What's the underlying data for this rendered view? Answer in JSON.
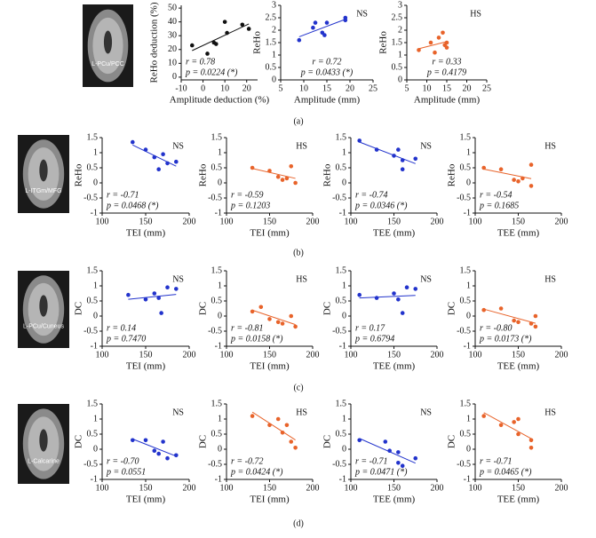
{
  "panels": [
    {
      "label": "(a)",
      "region": "L-PCu/PCC"
    },
    {
      "label": "(b)",
      "region": "L-ITGm/MFG"
    },
    {
      "label": "(c)",
      "region": "L-PCu/Cuneus"
    },
    {
      "label": "(d)",
      "region": "L-Calcarine"
    }
  ],
  "chart_data": [
    {
      "type": "scatter",
      "xlabel": "Amplitude deduction (%)",
      "ylabel": "ReHo deduction (%)",
      "xlim": [
        -10,
        25
      ],
      "xticks": [
        -10,
        0,
        10,
        20
      ],
      "ylim": [
        -2,
        52
      ],
      "yticks": [
        0,
        10,
        20,
        30,
        40,
        50
      ],
      "fit": true,
      "note_corner": "lower-left",
      "x": [
        -5,
        2,
        5,
        6,
        10,
        11,
        18,
        21
      ],
      "series": [
        {
          "color": "#111111",
          "values": [
            23,
            17,
            25,
            24,
            40,
            32,
            38,
            35
          ]
        }
      ],
      "annotations": [
        "r = 0.78",
        "p = 0.0224 (*)"
      ]
    },
    {
      "type": "scatter",
      "xlabel": "Amplitude (mm)",
      "ylabel": "ReHo",
      "xlim": [
        5,
        25
      ],
      "xticks": [
        5,
        10,
        15,
        20,
        25
      ],
      "ylim": [
        0,
        3
      ],
      "yticks": [
        0,
        0.5,
        1,
        1.5,
        2,
        2.5,
        3
      ],
      "fit": true,
      "note_corner": "lower-center",
      "x": [
        9,
        12,
        12.5,
        14,
        14.5,
        15,
        19,
        19
      ],
      "series": [
        {
          "name": "NS",
          "color": "#2233cc",
          "values": [
            1.6,
            2.1,
            2.3,
            1.9,
            1.8,
            2.3,
            2.5,
            2.4
          ]
        }
      ],
      "annotations": [
        "r = 0.72",
        "p = 0.0433 (*)"
      ]
    },
    {
      "type": "scatter",
      "xlabel": "Amplitude (mm)",
      "ylabel": "ReHo",
      "xlim": [
        5,
        25
      ],
      "xticks": [
        5,
        10,
        15,
        20,
        25
      ],
      "ylim": [
        0,
        3
      ],
      "yticks": [
        0,
        0.5,
        1,
        1.5,
        2,
        2.5,
        3
      ],
      "fit": true,
      "note_corner": "lower-center",
      "x": [
        8,
        11,
        12,
        13,
        14,
        14.5,
        15,
        15
      ],
      "series": [
        {
          "name": "HS",
          "color": "#e8632a",
          "values": [
            1.2,
            1.5,
            1.1,
            1.7,
            1.9,
            1.4,
            1.5,
            1.3
          ]
        }
      ],
      "annotations": [
        "r = 0.33",
        "p = 0.4179"
      ]
    },
    {
      "type": "scatter",
      "xlabel": "TEI (mm)",
      "ylabel": "ReHo",
      "xlim": [
        100,
        200
      ],
      "xticks": [
        100,
        150,
        200
      ],
      "ylim": [
        -1,
        1.5
      ],
      "yticks": [
        -1,
        -0.5,
        0,
        0.5,
        1,
        1.5
      ],
      "fit": true,
      "note_corner": "lower-left",
      "x": [
        135,
        150,
        160,
        165,
        170,
        175,
        185
      ],
      "series": [
        {
          "name": "NS",
          "color": "#2233cc",
          "values": [
            1.35,
            1.1,
            0.85,
            0.45,
            0.95,
            0.65,
            0.7
          ]
        }
      ],
      "annotations": [
        "r = -0.71",
        "p = 0.0468 (*)"
      ]
    },
    {
      "type": "scatter",
      "xlabel": "TEI (mm)",
      "ylabel": "ReHo",
      "xlim": [
        100,
        200
      ],
      "xticks": [
        100,
        150,
        200
      ],
      "ylim": [
        -1,
        1.5
      ],
      "yticks": [
        -1,
        -0.5,
        0,
        0.5,
        1,
        1.5
      ],
      "fit": true,
      "note_corner": "lower-left",
      "x": [
        130,
        150,
        160,
        165,
        170,
        175,
        180
      ],
      "series": [
        {
          "name": "HS",
          "color": "#e8632a",
          "values": [
            0.5,
            0.4,
            0.2,
            0.1,
            0.15,
            0.55,
            0.0
          ]
        }
      ],
      "annotations": [
        "r = -0.59",
        "p = 0.1203"
      ]
    },
    {
      "type": "scatter",
      "xlabel": "TEE (mm)",
      "ylabel": "ReHo",
      "xlim": [
        100,
        200
      ],
      "xticks": [
        100,
        150,
        200
      ],
      "ylim": [
        -1,
        1.5
      ],
      "yticks": [
        -1,
        -0.5,
        0,
        0.5,
        1,
        1.5
      ],
      "fit": true,
      "note_corner": "lower-left",
      "x": [
        110,
        130,
        150,
        155,
        160,
        160,
        175
      ],
      "series": [
        {
          "name": "NS",
          "color": "#2233cc",
          "values": [
            1.4,
            1.1,
            0.9,
            1.1,
            0.75,
            0.45,
            0.8
          ]
        }
      ],
      "annotations": [
        "r = -0.74",
        "p = 0.0346 (*)"
      ]
    },
    {
      "type": "scatter",
      "xlabel": "TEE (mm)",
      "ylabel": "ReHo",
      "xlim": [
        100,
        200
      ],
      "xticks": [
        100,
        150,
        200
      ],
      "ylim": [
        -1,
        1.5
      ],
      "yticks": [
        -1,
        -0.5,
        0,
        0.5,
        1,
        1.5
      ],
      "fit": true,
      "note_corner": "lower-left",
      "x": [
        110,
        130,
        145,
        150,
        155,
        165,
        165
      ],
      "series": [
        {
          "name": "HS",
          "color": "#e8632a",
          "values": [
            0.5,
            0.45,
            0.1,
            0.05,
            0.15,
            0.6,
            -0.1
          ]
        }
      ],
      "annotations": [
        "r = -0.54",
        "p = 0.1685"
      ]
    },
    {
      "type": "scatter",
      "xlabel": "TEI (mm)",
      "ylabel": "DC",
      "xlim": [
        100,
        200
      ],
      "xticks": [
        100,
        150,
        200
      ],
      "ylim": [
        -1,
        1.5
      ],
      "yticks": [
        -1,
        -0.5,
        0,
        0.5,
        1,
        1.5
      ],
      "fit": true,
      "note_corner": "lower-left",
      "x": [
        130,
        150,
        160,
        165,
        168,
        175,
        185
      ],
      "series": [
        {
          "name": "NS",
          "color": "#2233cc",
          "values": [
            0.7,
            0.55,
            0.75,
            0.6,
            0.1,
            0.95,
            0.9
          ]
        }
      ],
      "annotations": [
        "r = 0.14",
        "p = 0.7470"
      ]
    },
    {
      "type": "scatter",
      "xlabel": "TEI (mm)",
      "ylabel": "DC",
      "xlim": [
        100,
        200
      ],
      "xticks": [
        100,
        150,
        200
      ],
      "ylim": [
        -1,
        1.5
      ],
      "yticks": [
        -1,
        -0.5,
        0,
        0.5,
        1,
        1.5
      ],
      "fit": true,
      "note_corner": "lower-left",
      "x": [
        130,
        140,
        150,
        160,
        165,
        175,
        180
      ],
      "series": [
        {
          "name": "HS",
          "color": "#e8632a",
          "values": [
            0.15,
            0.3,
            -0.1,
            -0.2,
            -0.25,
            0.0,
            -0.35
          ]
        }
      ],
      "annotations": [
        "r = -0.81",
        "p = 0.0158 (*)"
      ]
    },
    {
      "type": "scatter",
      "xlabel": "TEE (mm)",
      "ylabel": "DC",
      "xlim": [
        100,
        200
      ],
      "xticks": [
        100,
        150,
        200
      ],
      "ylim": [
        -1,
        1.5
      ],
      "yticks": [
        -1,
        -0.5,
        0,
        0.5,
        1,
        1.5
      ],
      "fit": true,
      "note_corner": "lower-left",
      "x": [
        110,
        130,
        150,
        155,
        160,
        165,
        175
      ],
      "series": [
        {
          "name": "NS",
          "color": "#2233cc",
          "values": [
            0.7,
            0.6,
            0.75,
            0.55,
            0.1,
            0.95,
            0.9
          ]
        }
      ],
      "annotations": [
        "r = 0.17",
        "p = 0.6794"
      ]
    },
    {
      "type": "scatter",
      "xlabel": "TEE (mm)",
      "ylabel": "DC",
      "xlim": [
        100,
        200
      ],
      "xticks": [
        100,
        150,
        200
      ],
      "ylim": [
        -1,
        1.5
      ],
      "yticks": [
        -1,
        -0.5,
        0,
        0.5,
        1,
        1.5
      ],
      "fit": true,
      "note_corner": "lower-left",
      "x": [
        110,
        130,
        145,
        150,
        165,
        170,
        170
      ],
      "series": [
        {
          "name": "HS",
          "color": "#e8632a",
          "values": [
            0.2,
            0.25,
            -0.15,
            -0.2,
            -0.25,
            0.0,
            -0.35
          ]
        }
      ],
      "annotations": [
        "r = -0.80",
        "p = 0.0173 (*)"
      ]
    },
    {
      "type": "scatter",
      "xlabel": "TEI (mm)",
      "ylabel": "DC",
      "xlim": [
        100,
        200
      ],
      "xticks": [
        100,
        150,
        200
      ],
      "ylim": [
        -1,
        1.5
      ],
      "yticks": [
        -1,
        -0.5,
        0,
        0.5,
        1,
        1.5
      ],
      "fit": true,
      "note_corner": "lower-left",
      "x": [
        135,
        150,
        160,
        165,
        170,
        175,
        185
      ],
      "series": [
        {
          "name": "NS",
          "color": "#2233cc",
          "values": [
            0.3,
            0.3,
            -0.05,
            -0.15,
            0.25,
            -0.3,
            -0.2
          ]
        }
      ],
      "annotations": [
        "r = -0.70",
        "p = 0.0551"
      ]
    },
    {
      "type": "scatter",
      "xlabel": "TEI (mm)",
      "ylabel": "DC",
      "xlim": [
        100,
        200
      ],
      "xticks": [
        100,
        150,
        200
      ],
      "ylim": [
        -1,
        1.5
      ],
      "yticks": [
        -1,
        -0.5,
        0,
        0.5,
        1,
        1.5
      ],
      "fit": true,
      "note_corner": "lower-left",
      "x": [
        130,
        150,
        160,
        165,
        170,
        175,
        180
      ],
      "series": [
        {
          "name": "HS",
          "color": "#e8632a",
          "values": [
            1.1,
            0.8,
            1.0,
            0.55,
            0.8,
            0.25,
            0.05
          ]
        }
      ],
      "annotations": [
        "r = -0.72",
        "p = 0.0424 (*)"
      ]
    },
    {
      "type": "scatter",
      "xlabel": "TEE (mm)",
      "ylabel": "DC",
      "xlim": [
        100,
        200
      ],
      "xticks": [
        100,
        150,
        200
      ],
      "ylim": [
        -1,
        1.5
      ],
      "yticks": [
        -1,
        -0.5,
        0,
        0.5,
        1,
        1.5
      ],
      "fit": true,
      "note_corner": "lower-left",
      "x": [
        110,
        140,
        145,
        155,
        155,
        160,
        175
      ],
      "series": [
        {
          "name": "NS",
          "color": "#2233cc",
          "values": [
            0.3,
            0.25,
            -0.05,
            -0.1,
            -0.45,
            -0.55,
            -0.3
          ]
        }
      ],
      "annotations": [
        "r = -0.71",
        "p = 0.0471 (*)"
      ]
    },
    {
      "type": "scatter",
      "xlabel": "TEE (mm)",
      "ylabel": "DC",
      "xlim": [
        100,
        200
      ],
      "xticks": [
        100,
        150,
        200
      ],
      "ylim": [
        -1,
        1.5
      ],
      "yticks": [
        -1,
        -0.5,
        0,
        0.5,
        1,
        1.5
      ],
      "fit": true,
      "note_corner": "lower-left",
      "x": [
        110,
        130,
        145,
        150,
        150,
        165,
        165
      ],
      "series": [
        {
          "name": "HS",
          "color": "#e8632a",
          "values": [
            1.1,
            0.8,
            0.9,
            1.0,
            0.5,
            0.3,
            0.05
          ]
        }
      ],
      "annotations": [
        "r = -0.71",
        "p = 0.0465 (*)"
      ]
    }
  ]
}
